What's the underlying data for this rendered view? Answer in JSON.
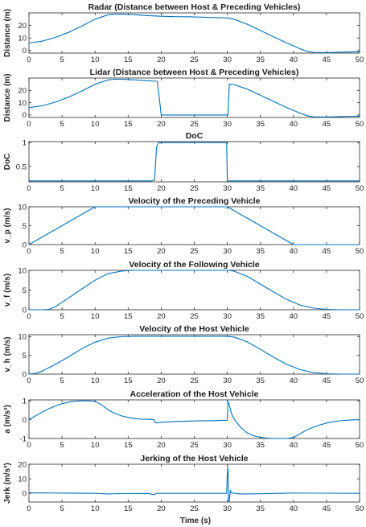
{
  "figure": {
    "x_axis_label": "Time (s)",
    "line_color": "#0072BD"
  },
  "chart_data": [
    {
      "type": "line",
      "title": "Radar (Distance between Host & Preceding Vehicles)",
      "ylabel": "Distance (m)",
      "xlim": [
        0,
        50
      ],
      "ylim": [
        -2,
        30
      ],
      "xticks": [
        "0",
        "5",
        "10",
        "15",
        "20",
        "25",
        "30",
        "35",
        "40",
        "45",
        "50"
      ],
      "yticks": [
        {
          "v": 0,
          "t": "0"
        },
        {
          "v": 10,
          "t": "10"
        },
        {
          "v": 20,
          "t": "20"
        }
      ],
      "series": [
        {
          "x": [
            0,
            2,
            4,
            6,
            8,
            10,
            12,
            13,
            14,
            16,
            18,
            20,
            22,
            24,
            26,
            28,
            30,
            31,
            33,
            35,
            37,
            39,
            41,
            42,
            43,
            45,
            47,
            49,
            50
          ],
          "y": [
            6,
            7.5,
            10.5,
            14.5,
            19.5,
            25,
            28.5,
            29,
            29,
            28.5,
            27.8,
            27.3,
            27,
            26.9,
            26.6,
            26.3,
            26,
            25,
            21,
            16,
            11,
            6,
            1.5,
            -0.5,
            -1.5,
            -1.6,
            -1.3,
            -1,
            -0.9
          ]
        }
      ]
    },
    {
      "type": "line",
      "title": "Lidar (Distance between Host & Preceding Vehicles)",
      "ylabel": "Distance (m)",
      "xlim": [
        0,
        50
      ],
      "ylim": [
        -2,
        30
      ],
      "xticks": [
        "0",
        "5",
        "10",
        "15",
        "20",
        "25",
        "30",
        "35",
        "40",
        "45",
        "50"
      ],
      "yticks": [
        {
          "v": 0,
          "t": "0"
        },
        {
          "v": 10,
          "t": "10"
        },
        {
          "v": 20,
          "t": "20"
        }
      ],
      "series": [
        {
          "x": [
            0,
            2,
            4,
            6,
            8,
            10,
            12,
            13,
            14,
            16,
            18,
            19.4,
            19.9,
            20,
            24,
            28,
            30,
            30.1,
            30.3,
            31,
            33,
            35,
            37,
            39,
            41,
            42,
            43,
            45,
            47,
            49,
            50
          ],
          "y": [
            6,
            7.5,
            10.5,
            14.5,
            19.5,
            25,
            28.5,
            29,
            29,
            28.5,
            27.8,
            27.4,
            5,
            0,
            0,
            0,
            0,
            0,
            25,
            24.8,
            21,
            16,
            11,
            6,
            1.5,
            -0.5,
            -1.5,
            -1.6,
            -1.3,
            -1,
            -0.9
          ]
        }
      ]
    },
    {
      "type": "line",
      "title": "DoC",
      "ylabel": "DoC",
      "xlim": [
        0,
        50
      ],
      "ylim": [
        0.18,
        1.02
      ],
      "xticks": [
        "0",
        "5",
        "10",
        "15",
        "20",
        "25",
        "30",
        "35",
        "40",
        "45",
        "50"
      ],
      "yticks": [
        {
          "v": 0.5,
          "t": "0.5"
        },
        {
          "v": 1,
          "t": "1"
        }
      ],
      "series": [
        {
          "x": [
            0,
            5,
            10,
            15,
            18.5,
            19.0,
            19.3,
            19.6,
            20,
            25,
            29.9,
            30,
            30.3,
            35,
            40,
            45,
            50
          ],
          "y": [
            0.2,
            0.2,
            0.2,
            0.2,
            0.2,
            0.22,
            0.9,
            1,
            1,
            1,
            1,
            0.2,
            0.2,
            0.2,
            0.2,
            0.2,
            0.2
          ]
        }
      ]
    },
    {
      "type": "line",
      "title": "Velocity of the Preceding Vehicle",
      "ylabel": "v_p (m/s)",
      "xlim": [
        0,
        50
      ],
      "ylim": [
        0,
        10
      ],
      "xticks": [
        "0",
        "5",
        "10",
        "15",
        "20",
        "25",
        "30",
        "35",
        "40",
        "45",
        "50"
      ],
      "yticks": [
        {
          "v": 0,
          "t": "0"
        },
        {
          "v": 5,
          "t": "5"
        },
        {
          "v": 10,
          "t": "10"
        }
      ],
      "series": [
        {
          "x": [
            0,
            10,
            30,
            40,
            50
          ],
          "y": [
            0,
            10,
            10,
            0,
            0
          ]
        }
      ]
    },
    {
      "type": "line",
      "title": "Velocity of the Following Vehicle",
      "ylabel": "v_f (m/s)",
      "xlim": [
        0,
        50
      ],
      "ylim": [
        0,
        10
      ],
      "xticks": [
        "0",
        "5",
        "10",
        "15",
        "20",
        "25",
        "30",
        "35",
        "40",
        "45",
        "50"
      ],
      "yticks": [
        {
          "v": 0,
          "t": "0"
        },
        {
          "v": 5,
          "t": "5"
        },
        {
          "v": 10,
          "t": "10"
        }
      ],
      "series": [
        {
          "x": [
            0,
            2,
            3,
            4,
            6,
            8,
            10,
            12,
            14,
            15,
            16,
            18,
            20,
            24,
            28,
            30,
            31,
            33,
            35,
            37,
            39,
            41,
            43,
            45,
            47,
            49,
            50
          ],
          "y": [
            0,
            0,
            0.1,
            0.8,
            3,
            5.3,
            7.5,
            9.2,
            9.8,
            9.95,
            10,
            10,
            10,
            10,
            10,
            10,
            9.8,
            8.5,
            6.5,
            4.5,
            2.6,
            1.2,
            0.4,
            0.1,
            0,
            0,
            0
          ]
        }
      ]
    },
    {
      "type": "line",
      "title": "Velocity of the Host Vehicle",
      "ylabel": "v_h (m/s)",
      "xlim": [
        0,
        50
      ],
      "ylim": [
        0,
        10.5
      ],
      "xticks": [
        "0",
        "5",
        "10",
        "15",
        "20",
        "25",
        "30",
        "35",
        "40",
        "45",
        "50"
      ],
      "yticks": [
        {
          "v": 0,
          "t": "0"
        },
        {
          "v": 5,
          "t": "5"
        },
        {
          "v": 10,
          "t": "10"
        }
      ],
      "series": [
        {
          "x": [
            0,
            1,
            2,
            4,
            6,
            8,
            10,
            12,
            14,
            16,
            18,
            20,
            24,
            28,
            30,
            31,
            33,
            35,
            37,
            39,
            41,
            43,
            45,
            47,
            49,
            50
          ],
          "y": [
            0,
            0.2,
            0.8,
            2.6,
            4.6,
            6.8,
            8.5,
            9.6,
            10,
            10.1,
            10.1,
            10.1,
            10.1,
            10.1,
            10.1,
            9.9,
            8.6,
            6.6,
            4.5,
            2.6,
            1.2,
            0.4,
            0.1,
            0,
            0,
            0
          ]
        }
      ]
    },
    {
      "type": "line",
      "title": "Acceleration of the Host Vehicle",
      "ylabel": "a (m/s²)",
      "xlim": [
        0,
        50
      ],
      "ylim": [
        -1,
        1.05
      ],
      "xticks": [
        "0",
        "5",
        "10",
        "15",
        "20",
        "25",
        "30",
        "35",
        "40",
        "45",
        "50"
      ],
      "yticks": [
        {
          "v": -1,
          "t": "-1"
        },
        {
          "v": 0,
          "t": "0"
        },
        {
          "v": 1,
          "t": "1"
        }
      ],
      "series": [
        {
          "x": [
            0,
            1,
            2,
            3,
            4,
            5,
            6,
            7,
            8,
            9,
            10,
            11,
            12,
            13,
            14,
            15,
            16,
            17,
            18,
            18.9,
            19.1,
            19.3,
            20,
            22,
            25,
            28,
            30,
            30.1,
            30.25,
            30.6,
            31,
            32,
            33,
            34,
            35,
            36,
            37,
            38,
            39,
            40,
            41,
            42,
            43,
            44,
            45,
            46,
            47,
            48,
            49,
            50
          ],
          "y": [
            0,
            0.2,
            0.4,
            0.58,
            0.73,
            0.85,
            0.93,
            0.98,
            1,
            1,
            0.97,
            0.78,
            0.52,
            0.33,
            0.2,
            0.12,
            0.06,
            0.03,
            0.02,
            0,
            -0.15,
            -0.17,
            -0.14,
            -0.1,
            -0.07,
            -0.05,
            -0.03,
            0.95,
            0.85,
            0.35,
            0.05,
            -0.4,
            -0.7,
            -0.86,
            -0.94,
            -0.98,
            -1,
            -1,
            -1,
            -0.95,
            -0.75,
            -0.55,
            -0.4,
            -0.28,
            -0.18,
            -0.11,
            -0.06,
            -0.03,
            -0.01,
            0
          ]
        }
      ]
    },
    {
      "type": "line",
      "title": "Jerking of the Host Vehicle",
      "ylabel": "Jerk (m/s³)",
      "xlim": [
        0,
        50
      ],
      "ylim": [
        -6,
        20
      ],
      "xticks": [
        "0",
        "5",
        "10",
        "15",
        "20",
        "25",
        "30",
        "35",
        "40",
        "45",
        "50"
      ],
      "yticks": [
        {
          "v": 0,
          "t": "0"
        },
        {
          "v": 10,
          "t": "10"
        },
        {
          "v": 20,
          "t": "20"
        }
      ],
      "series": [
        {
          "x": [
            0,
            5,
            10,
            12,
            14,
            18,
            19,
            19.1,
            19.2,
            20,
            25,
            29.9,
            30,
            30.1,
            30.2,
            30.3,
            30.45,
            30.6,
            32,
            35,
            40,
            45,
            50
          ],
          "y": [
            0.3,
            0.2,
            0,
            -0.4,
            -0.2,
            -0.1,
            -1,
            -0.3,
            0,
            0,
            0,
            0,
            14,
            18,
            -6,
            -5,
            2,
            0.3,
            -0.4,
            -0.3,
            0.2,
            0.1,
            0
          ]
        }
      ]
    }
  ]
}
